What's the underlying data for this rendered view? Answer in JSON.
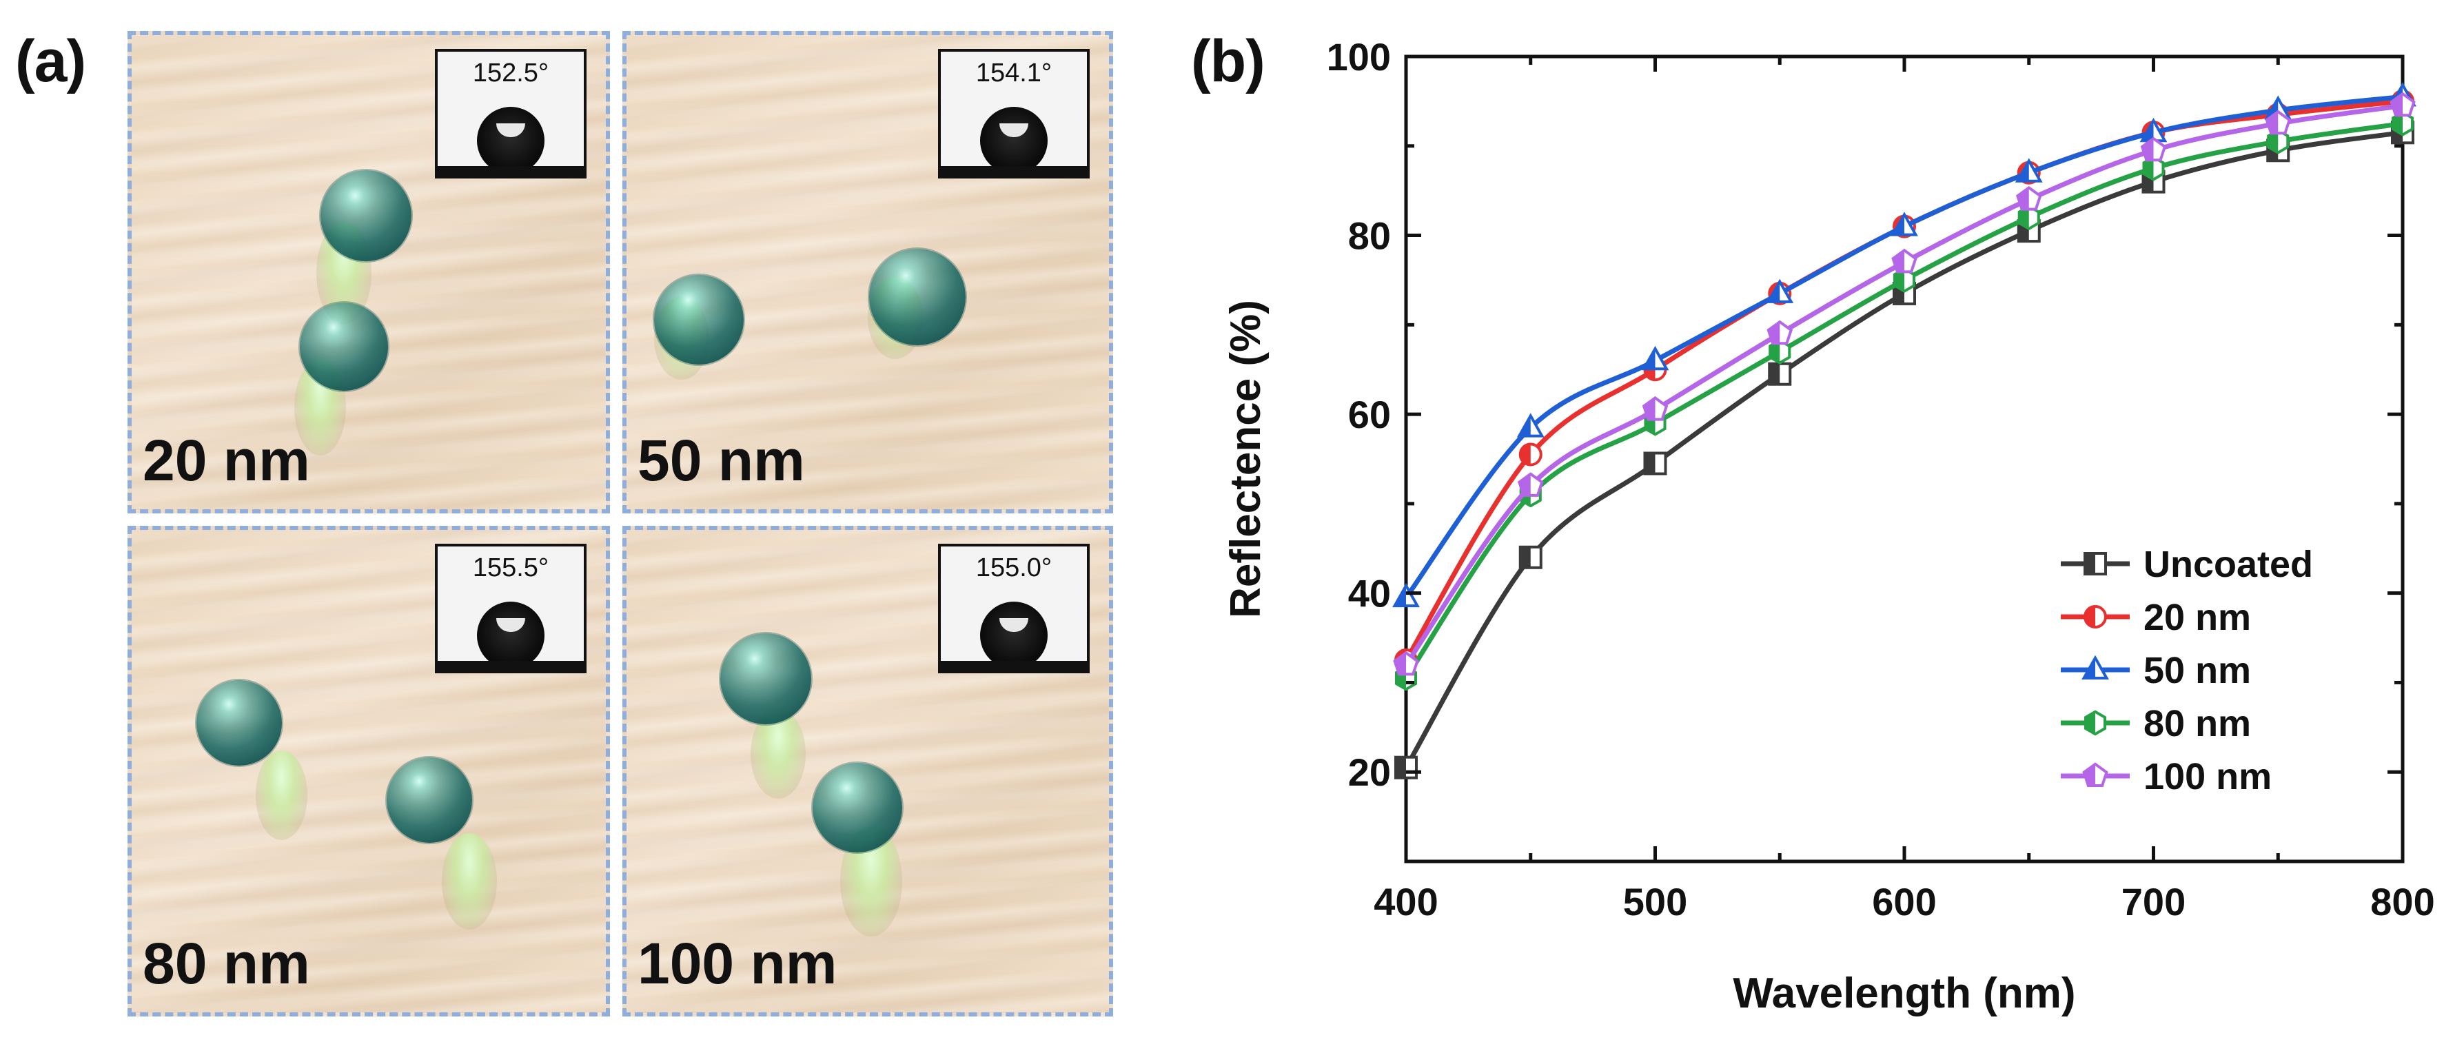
{
  "figure": {
    "panel_a_label": "(a)",
    "panel_b_label": "(b)"
  },
  "photos": [
    {
      "thickness": "20 nm",
      "contact_angle": "152.5°"
    },
    {
      "thickness": "50 nm",
      "contact_angle": "154.1°"
    },
    {
      "thickness": "80 nm",
      "contact_angle": "155.5°"
    },
    {
      "thickness": "100 nm",
      "contact_angle": "155.0°"
    }
  ],
  "colors": {
    "uncoated": "#3a3a3a",
    "nm20": "#e8312f",
    "nm50": "#1f5fd6",
    "nm80": "#25a245",
    "nm100": "#b566e8",
    "frame_dash": "#8eaee0"
  },
  "chart_data": {
    "type": "line",
    "title": "",
    "xlabel": "Wavelength (nm)",
    "ylabel": "Reflectence (%)",
    "xlim": [
      400,
      800
    ],
    "ylim": [
      10,
      100
    ],
    "xticks": [
      400,
      500,
      600,
      700,
      800
    ],
    "yticks": [
      20,
      40,
      60,
      80,
      100
    ],
    "legend_position": "bottom-right",
    "x": [
      400,
      450,
      500,
      550,
      600,
      650,
      700,
      750,
      800
    ],
    "series": [
      {
        "name": "Uncoated",
        "marker": "square",
        "color": "#3a3a3a",
        "values": [
          20.5,
          44,
          54.5,
          64.5,
          73.5,
          80.5,
          86,
          89.5,
          91.5
        ]
      },
      {
        "name": "20 nm",
        "marker": "circle",
        "color": "#e8312f",
        "values": [
          32.5,
          55.5,
          65,
          73.5,
          81,
          87,
          91.5,
          93.5,
          95
        ]
      },
      {
        "name": "50 nm",
        "marker": "triangle",
        "color": "#1f5fd6",
        "values": [
          39.5,
          58.5,
          66,
          73.5,
          81,
          87,
          91.5,
          94,
          95.5
        ]
      },
      {
        "name": "80 nm",
        "marker": "hexagon",
        "color": "#25a245",
        "values": [
          30.5,
          51,
          59,
          67,
          75,
          82,
          87.5,
          90.5,
          92.5
        ]
      },
      {
        "name": "100 nm",
        "marker": "pentagon",
        "color": "#b566e8",
        "values": [
          32,
          52,
          60.5,
          69,
          77,
          84,
          89.5,
          92.5,
          94.5
        ]
      }
    ]
  }
}
